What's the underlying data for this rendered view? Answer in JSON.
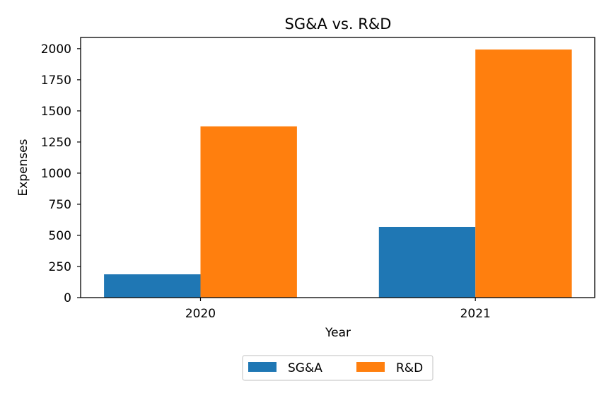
{
  "chart_data": {
    "type": "bar",
    "title": "SG&A vs. R&D",
    "xlabel": "Year",
    "ylabel": "Expenses",
    "categories": [
      "2020",
      "2021"
    ],
    "series": [
      {
        "name": "SG&A",
        "values": [
          187,
          568
        ],
        "color": "#1f77b4"
      },
      {
        "name": "R&D",
        "values": [
          1376,
          1993
        ],
        "color": "#ff7f0e"
      }
    ],
    "ylim": [
      0,
      2090
    ],
    "yticks": [
      0,
      250,
      500,
      750,
      1000,
      1250,
      1500,
      1750,
      2000
    ],
    "grid": false,
    "legend_position": "bottom-center"
  }
}
